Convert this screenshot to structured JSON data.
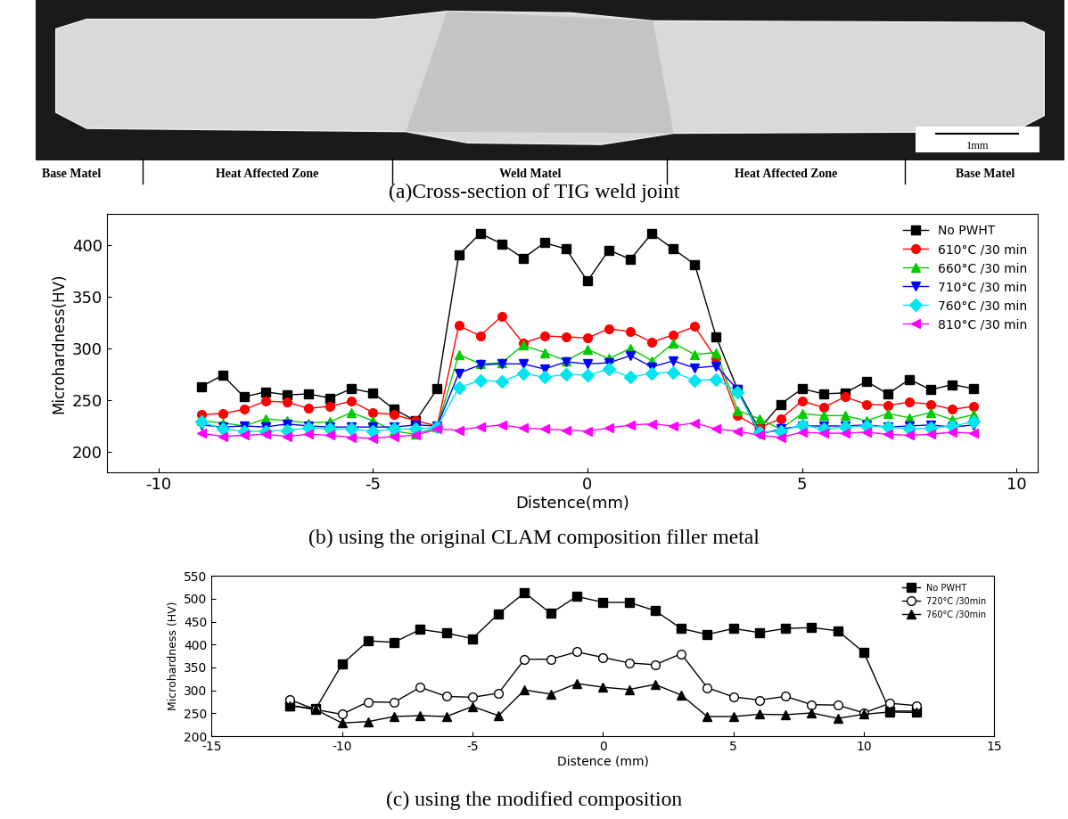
{
  "panel_a": {
    "caption": "(a)Cross-section of TIG weld joint",
    "zones": [
      "Base Matel",
      "Heat Affected Zone",
      "Weld Matel",
      "Heat Affected Zone",
      "Base Matel"
    ],
    "scale_bar": "1mm"
  },
  "chart_data": [
    {
      "type": "line",
      "title": "(b) using the original CLAM composition filler metal",
      "x_label": "Distence(mm)",
      "y_label": "Microhardness(HV)",
      "x": [
        -9,
        -8.5,
        -8,
        -7.5,
        -7,
        -6.5,
        -6,
        -5.5,
        -5,
        -4.5,
        -4,
        -3.5,
        -3,
        -2.5,
        -2,
        -1.5,
        -1,
        -0.5,
        0,
        0.5,
        1,
        1.5,
        2,
        2.5,
        3,
        3.5,
        4,
        4.5,
        5,
        5.5,
        6,
        6.5,
        7,
        7.5,
        8,
        8.5,
        9
      ],
      "series": [
        {
          "name": "No PWHT",
          "color": "#000000",
          "marker": "square",
          "values": [
            263,
            274,
            253,
            258,
            255,
            256,
            252,
            261,
            257,
            241,
            230,
            261,
            390,
            411,
            401,
            387,
            402,
            396,
            365,
            395,
            386,
            411,
            396,
            381,
            311,
            260,
            222,
            246,
            261,
            256,
            257,
            268,
            256,
            270,
            260,
            265,
            261
          ]
        },
        {
          "name": "610°C /30 min",
          "color": "#ff0000",
          "marker": "circle",
          "values": [
            236,
            237,
            241,
            249,
            248,
            242,
            244,
            249,
            238,
            236,
            230,
            225,
            322,
            312,
            331,
            305,
            312,
            311,
            310,
            319,
            316,
            306,
            313,
            321,
            290,
            235,
            223,
            232,
            249,
            243,
            253,
            246,
            245,
            248,
            246,
            241,
            244
          ]
        },
        {
          "name": "660°C /30 min",
          "color": "#00cc00",
          "marker": "triangle_up",
          "values": [
            230,
            228,
            225,
            232,
            230,
            228,
            229,
            238,
            230,
            220,
            217,
            224,
            294,
            285,
            286,
            303,
            296,
            288,
            299,
            290,
            300,
            288,
            305,
            294,
            296,
            240,
            232,
            222,
            237,
            235,
            235,
            230,
            237,
            233,
            238,
            231,
            236
          ]
        },
        {
          "name": "710°C /30 min",
          "color": "#0000ff",
          "marker": "triangle_down",
          "values": [
            226,
            224,
            225,
            224,
            227,
            225,
            224,
            224,
            224,
            224,
            226,
            225,
            276,
            284,
            285,
            285,
            280,
            287,
            285,
            286,
            293,
            282,
            288,
            281,
            283,
            260,
            217,
            222,
            225,
            225,
            225,
            226,
            224,
            225,
            226,
            224,
            226
          ]
        },
        {
          "name": "760°C /30 min",
          "color": "#00e5ee",
          "marker": "diamond",
          "values": [
            229,
            222,
            220,
            220,
            221,
            223,
            222,
            222,
            220,
            222,
            222,
            224,
            262,
            269,
            268,
            276,
            272,
            275,
            274,
            280,
            272,
            276,
            277,
            269,
            270,
            258,
            219,
            220,
            226,
            222,
            224,
            225,
            224,
            222,
            223,
            225,
            229
          ]
        },
        {
          "name": "810°C /30 min",
          "color": "#ff00ff",
          "marker": "triangle_left",
          "values": [
            218,
            215,
            216,
            217,
            215,
            217,
            216,
            214,
            213,
            215,
            216,
            222,
            221,
            224,
            226,
            223,
            222,
            221,
            220,
            223,
            226,
            227,
            225,
            228,
            222,
            220,
            216,
            214,
            219,
            218,
            218,
            219,
            217,
            216,
            217,
            219,
            218
          ]
        }
      ],
      "xlim": [
        -11.2,
        10.5
      ],
      "xticks": [
        -10,
        -5,
        0,
        5,
        10
      ],
      "ylim": [
        180,
        430
      ],
      "yticks": [
        200,
        250,
        300,
        350,
        400
      ],
      "legend": "upper right",
      "grid": false
    },
    {
      "type": "line",
      "title": "(c) using the modified composition",
      "x_label": "Distence (mm)",
      "y_label": "Microhardness (HV)",
      "x": [
        -12,
        -11,
        -10,
        -9,
        -8,
        -7,
        -6,
        -5,
        -4,
        -3,
        -2,
        -1,
        0,
        1,
        2,
        3,
        4,
        5,
        6,
        7,
        8,
        9,
        10,
        11,
        12
      ],
      "series": [
        {
          "name": "No PWHT",
          "color": "#000000",
          "marker": "square",
          "values": [
            267,
            260,
            357,
            408,
            405,
            433,
            425,
            413,
            467,
            513,
            468,
            505,
            492,
            492,
            474,
            435,
            422,
            435,
            426,
            435,
            437,
            430,
            383,
            255,
            255
          ]
        },
        {
          "name": "720°C /30min",
          "color": "#000000",
          "marker": "open_circle",
          "values": [
            280,
            258,
            248,
            275,
            274,
            307,
            287,
            285,
            294,
            368,
            368,
            384,
            372,
            360,
            356,
            380,
            306,
            286,
            279,
            287,
            269,
            268,
            251,
            272,
            267
          ]
        },
        {
          "name": "760°C /30min",
          "color": "#000000",
          "marker": "triangle_up",
          "values": [
            267,
            258,
            229,
            232,
            243,
            245,
            243,
            265,
            245,
            301,
            292,
            315,
            307,
            302,
            313,
            290,
            243,
            243,
            248,
            247,
            251,
            239,
            248,
            253,
            252
          ]
        }
      ],
      "xlim": [
        -15,
        15
      ],
      "xticks": [
        -15,
        -10,
        -5,
        0,
        5,
        10,
        15
      ],
      "ylim": [
        200,
        550
      ],
      "yticks": [
        200,
        250,
        300,
        350,
        400,
        450,
        500,
        550
      ],
      "legend": "upper right",
      "grid": false
    }
  ]
}
